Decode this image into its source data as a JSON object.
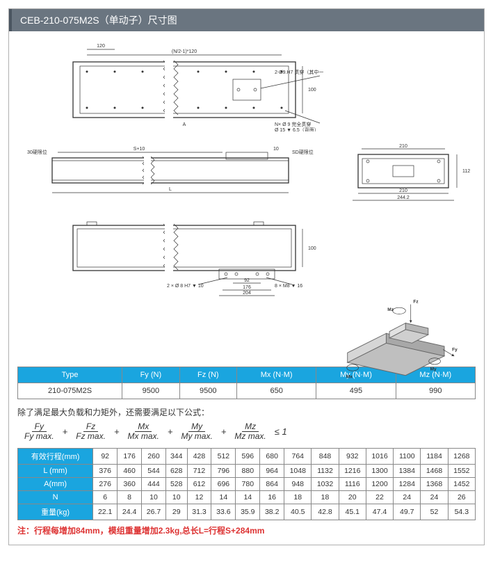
{
  "title": "CEB-210-075M2S（单动子）尺寸图",
  "top_view": {
    "dim_top": "(N/2-1)*120",
    "dim_120": "120",
    "hole_note": "2-Ø9.H7 贯穿（其中一边为键孔）",
    "height": "100",
    "bottom_note": "N× Ø 9 完全贯穿",
    "bottom_note2": "Ø 15 ▼ 6.5（背面）"
  },
  "front_view": {
    "left_limit": "30硬限位",
    "s_plus_10": "S+10",
    "right_10": "10",
    "sd_limit": "SD硬限位",
    "L": "L",
    "A": "A"
  },
  "side_view": {
    "w210": "210",
    "w210b": "210",
    "w244": "244.2",
    "h112": "112"
  },
  "bottom_view": {
    "h100": "100",
    "hole_note_l": "2 × Ø 8 H7 ▼ 10",
    "hole_note_r": "8 × M8 ▼ 16",
    "d92": "92",
    "d176": "176",
    "d204": "204"
  },
  "iso": {
    "fz": "Fz",
    "mz": "Mz",
    "fy": "Fy",
    "my": "My",
    "mx": "Mx"
  },
  "spec_table": {
    "headers": [
      "Type",
      "Fy (N)",
      "Fz (N)",
      "Mx (N·M)",
      "My (N·M)",
      "Mz (N·M)"
    ],
    "row": [
      "210-075M2S",
      "9500",
      "9500",
      "650",
      "495",
      "990"
    ]
  },
  "formula_note": "除了满足最大负载和力矩外，还需要满足以下公式：",
  "formula": {
    "terms": [
      {
        "num": "Fy",
        "den": "Fy max."
      },
      {
        "num": "Fz",
        "den": "Fz max."
      },
      {
        "num": "Mx",
        "den": "Mx max."
      },
      {
        "num": "My",
        "den": "My max."
      },
      {
        "num": "Mz",
        "den": "Mz max."
      }
    ],
    "tail": "≤ 1"
  },
  "stroke_table": {
    "row_headers": [
      "有效行程(mm)",
      "L (mm)",
      "A(mm)",
      "N",
      "重量(kg)"
    ],
    "cols": [
      [
        "92",
        "376",
        "276",
        "6",
        "22.1"
      ],
      [
        "176",
        "460",
        "360",
        "8",
        "24.4"
      ],
      [
        "260",
        "544",
        "444",
        "10",
        "26.7"
      ],
      [
        "344",
        "628",
        "528",
        "10",
        "29"
      ],
      [
        "428",
        "712",
        "612",
        "12",
        "31.3"
      ],
      [
        "512",
        "796",
        "696",
        "14",
        "33.6"
      ],
      [
        "596",
        "880",
        "780",
        "14",
        "35.9"
      ],
      [
        "680",
        "964",
        "864",
        "16",
        "38.2"
      ],
      [
        "764",
        "1048",
        "948",
        "18",
        "40.5"
      ],
      [
        "848",
        "1132",
        "1032",
        "18",
        "42.8"
      ],
      [
        "932",
        "1216",
        "1116",
        "20",
        "45.1"
      ],
      [
        "1016",
        "1300",
        "1200",
        "22",
        "47.4"
      ],
      [
        "1100",
        "1384",
        "1284",
        "24",
        "49.7"
      ],
      [
        "1184",
        "1468",
        "1368",
        "24",
        "52"
      ],
      [
        "1268",
        "1552",
        "1452",
        "26",
        "54.3"
      ]
    ]
  },
  "foot_note": "注：行程每增加84mm，模组重量增加2.3kg,总长L=行程S+284mm",
  "colors": {
    "header_bg": "#6a7580",
    "table_head": "#1aa5df",
    "note_color": "#d33"
  }
}
